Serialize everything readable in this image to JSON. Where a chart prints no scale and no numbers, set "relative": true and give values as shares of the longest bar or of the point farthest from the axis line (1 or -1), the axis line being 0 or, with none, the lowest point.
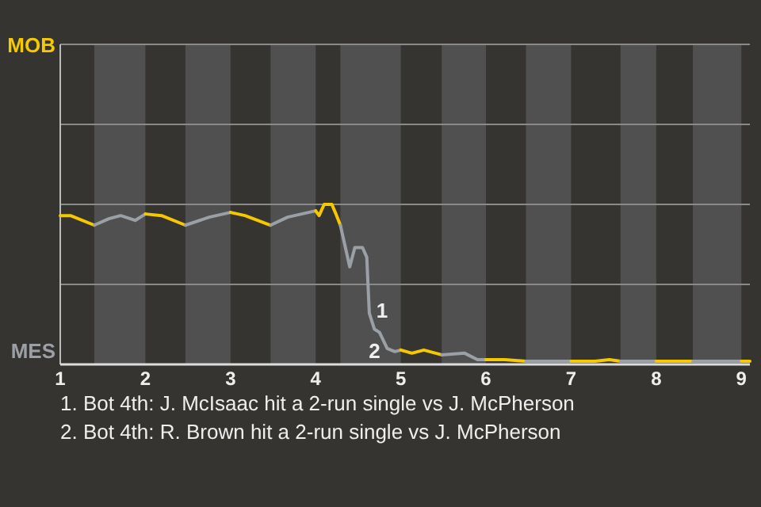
{
  "chart_data": {
    "type": "line",
    "relative": true,
    "series": [
      {
        "color": "#f5c800",
        "x": [
          1.0,
          1.12,
          1.4
        ],
        "values": [
          0.93,
          0.93,
          0.87
        ]
      },
      {
        "color": "#9aa0a6",
        "x": [
          1.4,
          1.57,
          1.71,
          1.88,
          2.0
        ],
        "values": [
          0.87,
          0.91,
          0.93,
          0.9,
          0.94
        ]
      },
      {
        "color": "#f5c800",
        "x": [
          2.0,
          2.19,
          2.47
        ],
        "values": [
          0.94,
          0.93,
          0.87
        ]
      },
      {
        "color": "#9aa0a6",
        "x": [
          2.47,
          2.75,
          3.0
        ],
        "values": [
          0.87,
          0.92,
          0.95
        ]
      },
      {
        "color": "#f5c800",
        "x": [
          3.0,
          3.17,
          3.47
        ],
        "values": [
          0.95,
          0.93,
          0.87
        ]
      },
      {
        "color": "#9aa0a6",
        "x": [
          3.47,
          3.67,
          4.0
        ],
        "values": [
          0.87,
          0.92,
          0.96
        ]
      },
      {
        "color": "#f5c800",
        "x": [
          4.0,
          4.04,
          4.1,
          4.19,
          4.23,
          4.29
        ],
        "values": [
          0.96,
          0.93,
          1,
          1,
          0.95,
          0.87
        ]
      },
      {
        "color": "#9aa0a6",
        "x": [
          4.29,
          4.4,
          4.46,
          4.55,
          4.6,
          4.63,
          4.69,
          4.75,
          4.84,
          4.93,
          5.0
        ],
        "values": [
          0.87,
          0.61,
          0.73,
          0.73,
          0.67,
          0.32,
          0.22,
          0.2,
          0.1,
          0.08,
          0.09
        ]
      },
      {
        "color": "#f5c800",
        "x": [
          5.0,
          5.13,
          5.27,
          5.48
        ],
        "values": [
          0.09,
          0.07,
          0.09,
          0.06
        ]
      },
      {
        "color": "#9aa0a6",
        "x": [
          5.48,
          5.75,
          5.9,
          6.0
        ],
        "values": [
          0.06,
          0.07,
          0.03,
          0.03
        ]
      },
      {
        "color": "#f5c800",
        "x": [
          6.0,
          6.22,
          6.47
        ],
        "values": [
          0.03,
          0.03,
          0.02
        ]
      },
      {
        "color": "#9aa0a6",
        "x": [
          6.47,
          6.78,
          7.0
        ],
        "values": [
          0.02,
          0.02,
          0.02
        ]
      },
      {
        "color": "#f5c800",
        "x": [
          7.0,
          7.28,
          7.45,
          7.58
        ],
        "values": [
          0.02,
          0.02,
          0.03,
          0.02
        ]
      },
      {
        "color": "#9aa0a6",
        "x": [
          7.58,
          7.78,
          8.0
        ],
        "values": [
          0.02,
          0.02,
          0.02
        ]
      },
      {
        "color": "#f5c800",
        "x": [
          8.0,
          8.22,
          8.43
        ],
        "values": [
          0.02,
          0.02,
          0.02
        ]
      },
      {
        "color": "#9aa0a6",
        "x": [
          8.43,
          8.69,
          9.0
        ],
        "values": [
          0.02,
          0.02,
          0.02
        ]
      },
      {
        "color": "#f5c800",
        "x": [
          9.0,
          9.1
        ],
        "values": [
          0.02,
          0.02
        ]
      }
    ],
    "xlim": [
      1,
      9.1
    ],
    "xticks": [
      1,
      2,
      3,
      4,
      5,
      6,
      7,
      8,
      9
    ],
    "ref_lines": [
      {
        "axis": "y",
        "value": 0.5,
        "color": "#8a8a8a"
      },
      {
        "axis": "y",
        "value": 1,
        "color": "#8a8a8a"
      },
      {
        "axis": "y",
        "value": 1.5,
        "color": "#8a8a8a"
      },
      {
        "axis": "y",
        "value": 2,
        "color": "#8a8a8a"
      }
    ],
    "bands": [
      {
        "axis": "x",
        "from": 1.4,
        "to": 2,
        "color": "#505050"
      },
      {
        "axis": "x",
        "from": 2.47,
        "to": 3,
        "color": "#505050"
      },
      {
        "axis": "x",
        "from": 3.47,
        "to": 4,
        "color": "#505050"
      },
      {
        "axis": "x",
        "from": 4.29,
        "to": 5,
        "color": "#505050"
      },
      {
        "axis": "x",
        "from": 5.48,
        "to": 6,
        "color": "#505050"
      },
      {
        "axis": "x",
        "from": 6.47,
        "to": 7,
        "color": "#505050"
      },
      {
        "axis": "x",
        "from": 7.58,
        "to": 8,
        "color": "#505050"
      },
      {
        "axis": "x",
        "from": 8.43,
        "to": 9,
        "color": "#505050"
      }
    ],
    "annotations": [
      "MOB",
      "MES",
      {
        "text": "1",
        "x": 4.63,
        "y": 0.32
      },
      {
        "text": "2",
        "x": 4.84,
        "y": 0.1
      },
      "1. Bot 4th: J. McIsaac hit a 2-run single vs J. McPherson",
      "2. Bot 4th: R. Brown hit a 2-run single vs J. McPherson"
    ]
  }
}
